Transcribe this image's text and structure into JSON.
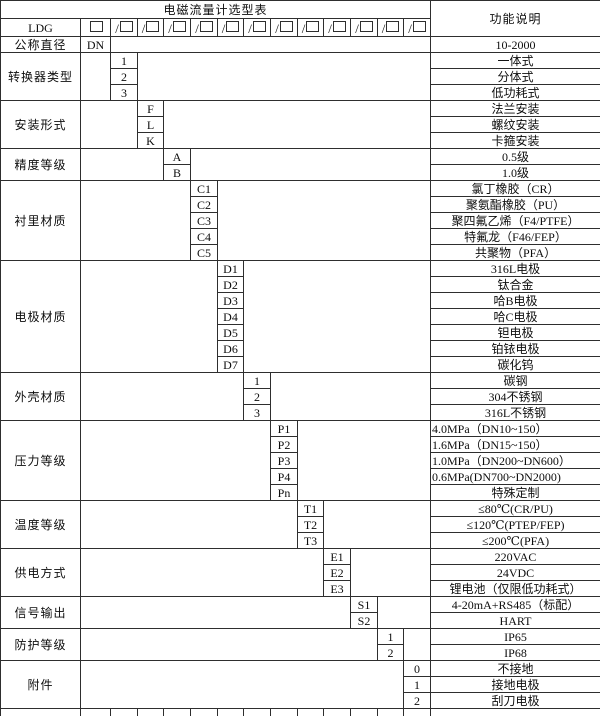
{
  "title": "电磁流量计选型表",
  "desc_header": "功能说明",
  "model_row": {
    "prefix": "LDG",
    "slot_prefix": "/",
    "slot_count": 13
  },
  "sections": [
    {
      "label": "公称直径",
      "col": 0,
      "rows": [
        {
          "code": "DN",
          "desc": "10-2000"
        }
      ]
    },
    {
      "label": "转换器类型",
      "col": 1,
      "rows": [
        {
          "code": "1",
          "desc": "一体式"
        },
        {
          "code": "2",
          "desc": "分体式"
        },
        {
          "code": "3",
          "desc": "低功耗式"
        }
      ]
    },
    {
      "label": "安装形式",
      "col": 2,
      "rows": [
        {
          "code": "F",
          "desc": "法兰安装"
        },
        {
          "code": "L",
          "desc": "螺纹安装"
        },
        {
          "code": "K",
          "desc": "卡箍安装"
        }
      ]
    },
    {
      "label": "精度等级",
      "col": 3,
      "rows": [
        {
          "code": "A",
          "desc": "0.5级"
        },
        {
          "code": "B",
          "desc": "1.0级"
        }
      ]
    },
    {
      "label": "衬里材质",
      "col": 4,
      "rows": [
        {
          "code": "C1",
          "desc": "氯丁橡胶（CR）"
        },
        {
          "code": "C2",
          "desc": "聚氨酯橡胶（PU）"
        },
        {
          "code": "C3",
          "desc": "聚四氟乙烯（F4/PTFE）"
        },
        {
          "code": "C4",
          "desc": "特氟龙（F46/FEP）"
        },
        {
          "code": "C5",
          "desc": "共聚物（PFA）"
        }
      ]
    },
    {
      "label": "电极材质",
      "col": 5,
      "rows": [
        {
          "code": "D1",
          "desc": "316L电极"
        },
        {
          "code": "D2",
          "desc": "钛合金"
        },
        {
          "code": "D3",
          "desc": "哈B电极"
        },
        {
          "code": "D4",
          "desc": "哈C电极"
        },
        {
          "code": "D5",
          "desc": "钽电极"
        },
        {
          "code": "D6",
          "desc": "铂铱电极"
        },
        {
          "code": "D7",
          "desc": "碳化钨"
        }
      ]
    },
    {
      "label": "外壳材质",
      "col": 6,
      "rows": [
        {
          "code": "1",
          "desc": "碳钢"
        },
        {
          "code": "2",
          "desc": "304不锈钢"
        },
        {
          "code": "3",
          "desc": "316L不锈钢"
        }
      ]
    },
    {
      "label": "压力等级",
      "col": 7,
      "rows": [
        {
          "code": "P1",
          "desc": "4.0MPa（DN10~150）",
          "align": "left"
        },
        {
          "code": "P2",
          "desc": "1.6MPa（DN15~150）",
          "align": "left"
        },
        {
          "code": "P3",
          "desc": "1.0MPa（DN200~DN600）",
          "align": "left"
        },
        {
          "code": "P4",
          "desc": "0.6MPa(DN700~DN2000)",
          "align": "left"
        },
        {
          "code": "Pn",
          "desc": "特殊定制"
        }
      ]
    },
    {
      "label": "温度等级",
      "col": 8,
      "rows": [
        {
          "code": "T1",
          "desc": "≤80℃(CR/PU)"
        },
        {
          "code": "T2",
          "desc": "≤120℃(PTEP/FEP)"
        },
        {
          "code": "T3",
          "desc": "≤200℃(PFA)"
        }
      ]
    },
    {
      "label": "供电方式",
      "col": 9,
      "rows": [
        {
          "code": "E1",
          "desc": "220VAC"
        },
        {
          "code": "E2",
          "desc": "24VDC"
        },
        {
          "code": "E3",
          "desc": "锂电池（仅限低功耗式）"
        }
      ]
    },
    {
      "label": "信号输出",
      "col": 10,
      "rows": [
        {
          "code": "S1",
          "desc": "4-20mA+RS485（标配）"
        },
        {
          "code": "S2",
          "desc": "HART"
        }
      ]
    },
    {
      "label": "防护等级",
      "col": 11,
      "rows": [
        {
          "code": "1",
          "desc": "IP65"
        },
        {
          "code": "2",
          "desc": "IP68"
        }
      ]
    },
    {
      "label": "附件",
      "col": 12,
      "rows": [
        {
          "code": "0",
          "desc": "不接地"
        },
        {
          "code": "1",
          "desc": "接地电极"
        },
        {
          "code": "2",
          "desc": "刮刀电极"
        }
      ]
    }
  ],
  "colors": {
    "border": "#2e2e2e",
    "text": "#0d0d0d",
    "background": "#ffffff"
  }
}
